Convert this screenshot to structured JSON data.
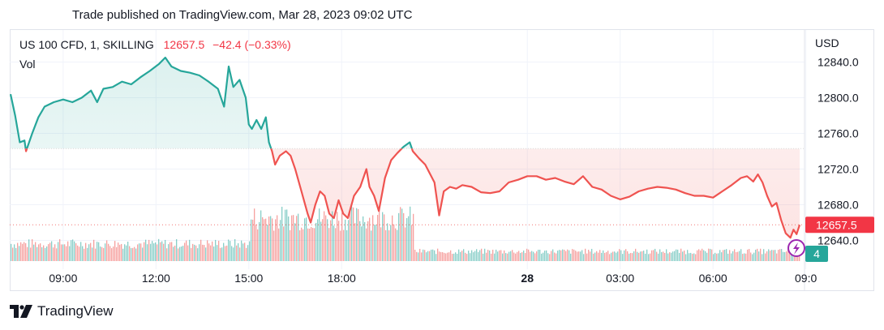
{
  "caption": "Trade published on TradingView.com, Mar 28, 2023 09:02 UTC",
  "legend": {
    "symbol": "US 100 CFD, 1, SKILLING",
    "last": "12657.5",
    "change": "−42.4 (−0.33%)",
    "volume_label": "Vol"
  },
  "currency": "USD",
  "price_tag": "12657.5",
  "event_badge": "4",
  "brand": "TradingView",
  "colors": {
    "up": "#26a69a",
    "down": "#ef5350",
    "baseline_above_fill": "#e6f4f1",
    "baseline_below_fill": "#fde6e6"
  },
  "chart_data": {
    "type": "line",
    "style": "baseline",
    "baseline": 12743,
    "ylim": [
      12620,
      12850
    ],
    "y_ticks": [
      12640,
      12680,
      12720,
      12760,
      12800,
      12840
    ],
    "y_tick_labels": [
      "12640.0",
      "12680.0",
      "12720.0",
      "12760.0",
      "12800.0",
      "12840.0"
    ],
    "x_ticks": [
      "09:00",
      "12:00",
      "15:00",
      "18:00",
      "28",
      "03:00",
      "06:00",
      "09:0"
    ],
    "x_tick_hours": [
      1,
      4,
      7,
      10,
      16,
      19,
      22,
      25
    ],
    "x_range_hours": [
      -0.7,
      24.8
    ],
    "grid": true,
    "series": [
      {
        "price_points": [
          [
            -0.7,
            12804
          ],
          [
            -0.55,
            12780
          ],
          [
            -0.4,
            12750
          ],
          [
            -0.25,
            12752
          ],
          [
            -0.2,
            12740
          ],
          [
            0.0,
            12760
          ],
          [
            0.2,
            12778
          ],
          [
            0.4,
            12790
          ],
          [
            0.7,
            12795
          ],
          [
            1.0,
            12798
          ],
          [
            1.3,
            12795
          ],
          [
            1.6,
            12800
          ],
          [
            1.9,
            12808
          ],
          [
            2.1,
            12795
          ],
          [
            2.3,
            12810
          ],
          [
            2.6,
            12812
          ],
          [
            2.9,
            12818
          ],
          [
            3.2,
            12815
          ],
          [
            3.5,
            12823
          ],
          [
            3.8,
            12830
          ],
          [
            4.1,
            12838
          ],
          [
            4.3,
            12845
          ],
          [
            4.5,
            12835
          ],
          [
            4.8,
            12830
          ],
          [
            5.1,
            12828
          ],
          [
            5.4,
            12825
          ],
          [
            5.7,
            12818
          ],
          [
            6.0,
            12810
          ],
          [
            6.2,
            12790
          ],
          [
            6.35,
            12835
          ],
          [
            6.5,
            12812
          ],
          [
            6.7,
            12820
          ],
          [
            6.9,
            12800
          ],
          [
            7.0,
            12770
          ],
          [
            7.1,
            12765
          ],
          [
            7.25,
            12775
          ],
          [
            7.4,
            12765
          ],
          [
            7.55,
            12778
          ],
          [
            7.65,
            12750
          ],
          [
            7.75,
            12740
          ],
          [
            7.85,
            12725
          ],
          [
            8.0,
            12735
          ],
          [
            8.2,
            12740
          ],
          [
            8.35,
            12735
          ],
          [
            8.5,
            12720
          ],
          [
            8.7,
            12695
          ],
          [
            8.9,
            12670
          ],
          [
            9.0,
            12660
          ],
          [
            9.15,
            12680
          ],
          [
            9.3,
            12695
          ],
          [
            9.45,
            12690
          ],
          [
            9.6,
            12670
          ],
          [
            9.75,
            12665
          ],
          [
            9.9,
            12685
          ],
          [
            10.05,
            12670
          ],
          [
            10.2,
            12665
          ],
          [
            10.4,
            12690
          ],
          [
            10.6,
            12700
          ],
          [
            10.8,
            12720
          ],
          [
            10.9,
            12700
          ],
          [
            11.05,
            12690
          ],
          [
            11.2,
            12673
          ],
          [
            11.4,
            12710
          ],
          [
            11.6,
            12730
          ],
          [
            11.8,
            12738
          ],
          [
            12.0,
            12745
          ],
          [
            12.2,
            12750
          ],
          [
            12.3,
            12740
          ],
          [
            12.5,
            12732
          ],
          [
            12.7,
            12725
          ],
          [
            12.85,
            12715
          ],
          [
            13.0,
            12705
          ],
          [
            13.15,
            12668
          ],
          [
            13.3,
            12695
          ],
          [
            13.5,
            12700
          ],
          [
            13.7,
            12698
          ],
          [
            13.9,
            12702
          ],
          [
            14.2,
            12700
          ],
          [
            14.5,
            12694
          ],
          [
            14.8,
            12693
          ],
          [
            15.1,
            12695
          ],
          [
            15.4,
            12705
          ],
          [
            15.7,
            12708
          ],
          [
            16.0,
            12712
          ],
          [
            16.3,
            12712
          ],
          [
            16.6,
            12708
          ],
          [
            16.9,
            12710
          ],
          [
            17.2,
            12706
          ],
          [
            17.5,
            12703
          ],
          [
            17.8,
            12712
          ],
          [
            18.1,
            12700
          ],
          [
            18.4,
            12697
          ],
          [
            18.7,
            12690
          ],
          [
            19.0,
            12686
          ],
          [
            19.3,
            12689
          ],
          [
            19.6,
            12695
          ],
          [
            19.9,
            12698
          ],
          [
            20.2,
            12700
          ],
          [
            20.5,
            12699
          ],
          [
            20.8,
            12697
          ],
          [
            21.1,
            12693
          ],
          [
            21.4,
            12690
          ],
          [
            21.7,
            12690
          ],
          [
            22.0,
            12688
          ],
          [
            22.3,
            12695
          ],
          [
            22.6,
            12702
          ],
          [
            22.9,
            12710
          ],
          [
            23.1,
            12712
          ],
          [
            23.3,
            12706
          ],
          [
            23.45,
            12714
          ],
          [
            23.6,
            12705
          ],
          [
            23.75,
            12690
          ],
          [
            23.9,
            12678
          ],
          [
            24.05,
            12682
          ],
          [
            24.2,
            12663
          ],
          [
            24.35,
            12648
          ],
          [
            24.5,
            12643
          ],
          [
            24.6,
            12652
          ],
          [
            24.7,
            12647
          ],
          [
            24.8,
            12657.5
          ]
        ]
      },
      {
        "volume_levels": [
          [
            -0.7,
            0.25
          ],
          [
            7.0,
            0.25
          ],
          [
            7.01,
            0.62
          ],
          [
            12.3,
            0.62
          ],
          [
            12.31,
            0.14
          ],
          [
            24.8,
            0.14
          ]
        ]
      }
    ]
  }
}
